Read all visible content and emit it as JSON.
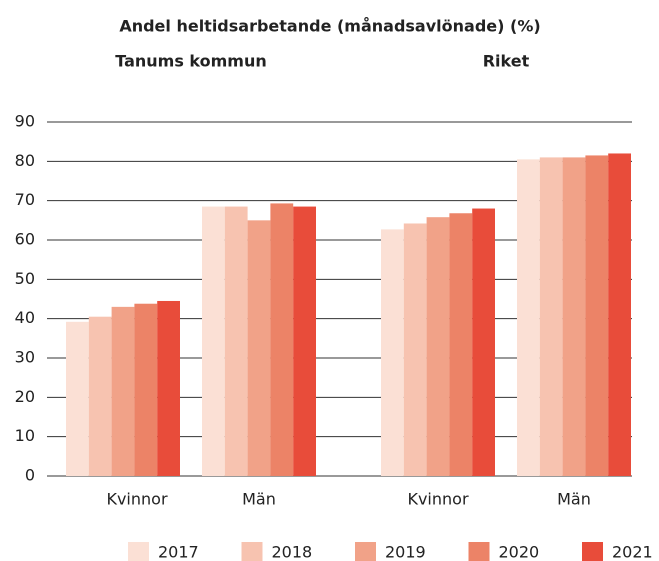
{
  "chart_data": {
    "type": "bar",
    "title": "Andel heltidsarbetande (månadsavlönade) (%)",
    "groups": [
      {
        "name": "Tanums kommun",
        "categories": [
          "Kvinnor",
          "Män"
        ]
      },
      {
        "name": "Riket",
        "categories": [
          "Kvinnor",
          "Män"
        ]
      }
    ],
    "series": [
      {
        "name": "2017",
        "color": "#fbe0d5",
        "values": [
          39.2,
          68.5,
          62.7,
          80.5
        ]
      },
      {
        "name": "2018",
        "color": "#f7c3b0",
        "values": [
          40.5,
          68.5,
          64.2,
          81
        ]
      },
      {
        "name": "2019",
        "color": "#f1a288",
        "values": [
          43,
          65,
          65.8,
          81
        ]
      },
      {
        "name": "2020",
        "color": "#ec8367",
        "values": [
          43.8,
          69.3,
          66.8,
          81.5
        ]
      },
      {
        "name": "2021",
        "color": "#e84c3a",
        "values": [
          44.5,
          68.5,
          68,
          82
        ]
      }
    ],
    "ylim": [
      0,
      90
    ],
    "yticks": [
      0,
      10,
      20,
      30,
      40,
      50,
      60,
      70,
      80,
      90
    ],
    "grid": true
  }
}
